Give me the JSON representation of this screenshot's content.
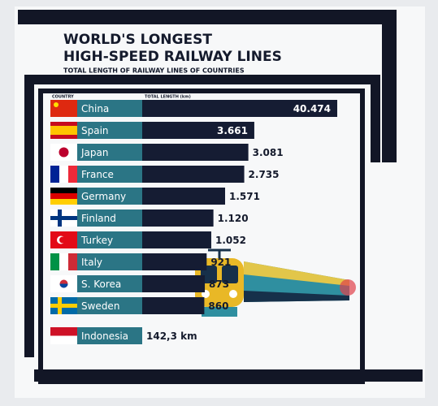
{
  "chart_data": {
    "type": "bar",
    "title_lines": [
      "WORLD'S LONGEST",
      "HIGH-SPEED RAILWAY LINES"
    ],
    "subtitle": "TOTAL LENGTH OF RAILWAY LINES OF COUNTRIES",
    "category_header": "COUNTRY",
    "value_header": "TOTAL LENGTH (km)",
    "categories": [
      "China",
      "Spain",
      "Japan",
      "France",
      "Germany",
      "Finland",
      "Turkey",
      "Italy",
      "S. Korea",
      "Sweden",
      "Indonesia"
    ],
    "values": [
      40474,
      3661,
      3081,
      2735,
      1571,
      1120,
      1052,
      921,
      873,
      860,
      142.3
    ],
    "value_labels": [
      "40.474",
      "3.661",
      "3.081",
      "2.735",
      "1.571",
      "1.120",
      "1.052",
      "921",
      "873",
      "860",
      "142,3 km"
    ],
    "color": "#151c33",
    "label_color": "#2b7585",
    "log": true
  }
}
